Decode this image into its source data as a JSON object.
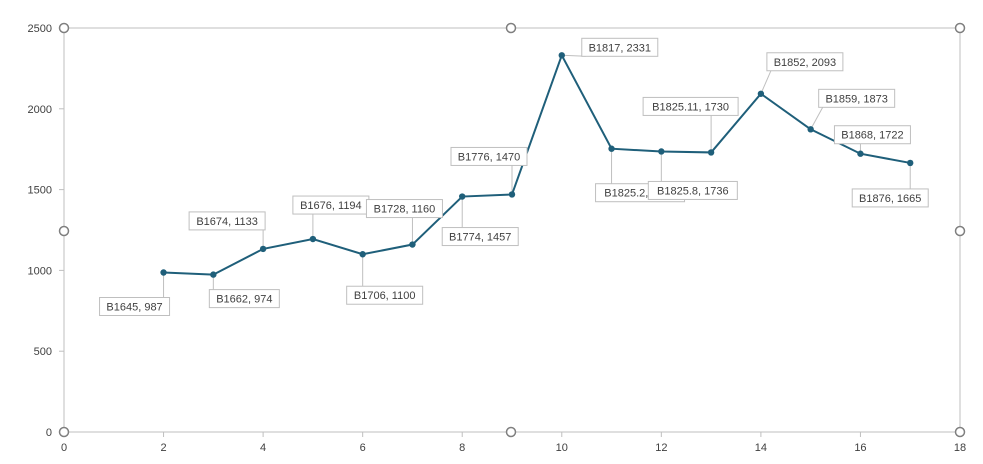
{
  "chart_data": {
    "type": "scatter",
    "mode": "lines+markers",
    "title": "",
    "xlabel": "",
    "ylabel": "",
    "xlim": [
      0,
      18
    ],
    "ylim": [
      0,
      2500
    ],
    "x_ticks": [
      0,
      2,
      4,
      6,
      8,
      10,
      12,
      14,
      16,
      18
    ],
    "y_ticks": [
      0,
      500,
      1000,
      1500,
      2000,
      2500
    ],
    "grid": false,
    "legend": "none",
    "line_color": "#1f5f7a",
    "points": [
      {
        "x": 2,
        "y": 987,
        "label": "B1645, 987"
      },
      {
        "x": 3,
        "y": 974,
        "label": "B1662, 974"
      },
      {
        "x": 4,
        "y": 1133,
        "label": "B1674, 1133"
      },
      {
        "x": 5,
        "y": 1194,
        "label": "B1676, 1194"
      },
      {
        "x": 6,
        "y": 1100,
        "label": "B1706, 1100"
      },
      {
        "x": 7,
        "y": 1160,
        "label": "B1728, 1160"
      },
      {
        "x": 8,
        "y": 1457,
        "label": "B1774, 1457"
      },
      {
        "x": 9,
        "y": 1470,
        "label": "B1776, 1470"
      },
      {
        "x": 10,
        "y": 2331,
        "label": "B1817, 2331"
      },
      {
        "x": 11,
        "y": 1753,
        "label": "B1825.2, 1753"
      },
      {
        "x": 12,
        "y": 1736,
        "label": "B1825.8, 1736"
      },
      {
        "x": 13,
        "y": 1730,
        "label": "B1825.11, 1730"
      },
      {
        "x": 14,
        "y": 2093,
        "label": "B1852, 2093"
      },
      {
        "x": 15,
        "y": 1873,
        "label": "B1859, 1873"
      },
      {
        "x": 16,
        "y": 1722,
        "label": "B1868, 1722"
      },
      {
        "x": 17,
        "y": 1665,
        "label": "B1876, 1665"
      }
    ]
  }
}
